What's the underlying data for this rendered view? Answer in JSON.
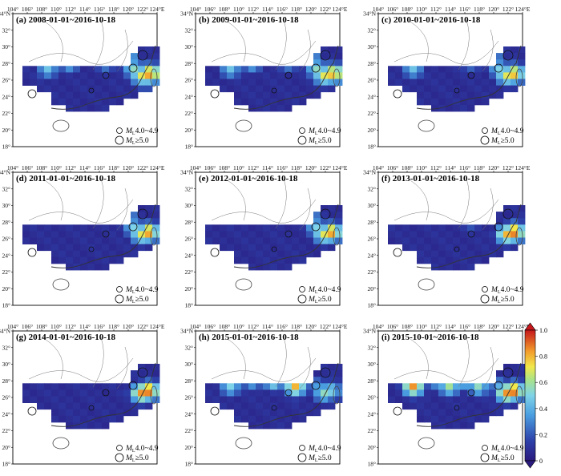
{
  "figure": {
    "panels": [
      {
        "letter": "(a)",
        "period": "2008-01-01~2016-10-18",
        "hot": [
          [
            3,
            3,
            0.45
          ],
          [
            6,
            2,
            0.5
          ],
          [
            11,
            2,
            0.4
          ],
          [
            14,
            1.5,
            0.55
          ],
          [
            15,
            3,
            0.55
          ],
          [
            16,
            4,
            0.7
          ],
          [
            17,
            3.7,
            0.85
          ],
          [
            17.5,
            3.7,
            0.75
          ],
          [
            16.5,
            4.5,
            0.55
          ]
        ]
      },
      {
        "letter": "(b)",
        "period": "2009-01-01~2016-10-18",
        "hot": [
          [
            3,
            3,
            0.45
          ],
          [
            6,
            2,
            0.5
          ],
          [
            11,
            2,
            0.4
          ],
          [
            14,
            1.5,
            0.5
          ],
          [
            15,
            3,
            0.55
          ],
          [
            16,
            4,
            0.7
          ],
          [
            17,
            3.7,
            0.8
          ],
          [
            17.5,
            3.7,
            0.75
          ]
        ]
      },
      {
        "letter": "(c)",
        "period": "2010-01-01~2016-10-18",
        "hot": [
          [
            3,
            3,
            0.45
          ],
          [
            11,
            2,
            0.35
          ],
          [
            14,
            1.5,
            0.45
          ],
          [
            15,
            3,
            0.5
          ],
          [
            16,
            4,
            0.7
          ],
          [
            17,
            3.7,
            0.8
          ]
        ]
      },
      {
        "letter": "(d)",
        "period": "2011-01-01~2016-10-18",
        "hot": [
          [
            14,
            1.5,
            0.45
          ],
          [
            15,
            3,
            0.5
          ],
          [
            16,
            4,
            0.7
          ],
          [
            17,
            3.7,
            0.85
          ]
        ]
      },
      {
        "letter": "(e)",
        "period": "2012-01-01~2016-10-18",
        "hot": [
          [
            14,
            1.5,
            0.45
          ],
          [
            15,
            3,
            0.5
          ],
          [
            16,
            4,
            0.7
          ],
          [
            17,
            3.7,
            0.85
          ]
        ]
      },
      {
        "letter": "(f)",
        "period": "2013-01-01~2016-10-18",
        "hot": [
          [
            11,
            2,
            0.3
          ],
          [
            16,
            4,
            0.8
          ],
          [
            17,
            3.7,
            0.9
          ]
        ]
      },
      {
        "letter": "(g)",
        "period": "2014-01-01~2016-10-18",
        "hot": [
          [
            16,
            4,
            0.85
          ],
          [
            17,
            3.7,
            0.9
          ]
        ]
      },
      {
        "letter": "(h)",
        "period": "2015-01-01~2016-10-18",
        "hot": [
          [
            6,
            2,
            0.5
          ],
          [
            9,
            2,
            0.7
          ],
          [
            11,
            1.8,
            0.85
          ],
          [
            12,
            3,
            0.8
          ],
          [
            3,
            3,
            0.5
          ],
          [
            15,
            3,
            0.35
          ],
          [
            16,
            4,
            0.55
          ],
          [
            17,
            3.7,
            0.5
          ]
        ]
      },
      {
        "letter": "(i)",
        "period": "2015-10-01~2016-10-18",
        "hot": [
          [
            3,
            3,
            0.85
          ],
          [
            6,
            2,
            0.45
          ],
          [
            8,
            3,
            0.6
          ],
          [
            10,
            2,
            0.55
          ],
          [
            12,
            3,
            0.55
          ],
          [
            15,
            3,
            0.4
          ],
          [
            16,
            4,
            0.85
          ],
          [
            17,
            3.7,
            0.9
          ]
        ]
      }
    ],
    "lon_ticks": [
      "104°",
      "106°",
      "108°",
      "110°",
      "112°",
      "114°",
      "116°",
      "118°",
      "120°",
      "122°",
      "124°E"
    ],
    "lat_ticks": [
      "18°",
      "20°",
      "22°",
      "24°",
      "26°",
      "28°",
      "30°",
      "32°",
      "34°N"
    ],
    "legend": {
      "m_letter": "M",
      "m_sub": "L",
      "small_text": "4.0~4.9",
      "large_text": "≥5.0"
    },
    "colorbar": {
      "ticks": [
        "0",
        "0.2",
        "0.4",
        "0.6",
        "0.8",
        "1.0"
      ],
      "range": [
        0,
        1
      ]
    },
    "colors": {
      "low": "#2c2a8c",
      "mid": "#5fc6e8",
      "high": "#d4231f"
    }
  }
}
